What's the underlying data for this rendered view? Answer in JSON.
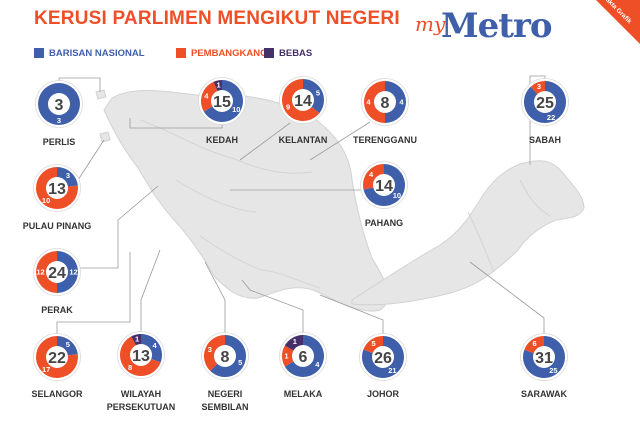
{
  "title": "KERUSI PARLIMEN MENGIKUT NEGERI",
  "logo": {
    "prefix": "my",
    "name": "Metro"
  },
  "corner_badge": "Fakta Grafik",
  "colors": {
    "bn": "#3f5fab",
    "opp": "#ee4f27",
    "bebas": "#45306a",
    "map": "#e5e5e5",
    "title": "#ee4f27"
  },
  "chart_data": {
    "type": "pie",
    "legend": [
      {
        "name": "BARISAN NASIONAL",
        "key": "bn"
      },
      {
        "name": "PEMBANGKANG",
        "key": "opp"
      },
      {
        "name": "BEBAS",
        "key": "bebas"
      }
    ],
    "states": [
      {
        "name": "PERLIS",
        "total": 3,
        "bn": 3,
        "opp": 0,
        "bebas": 0
      },
      {
        "name": "KEDAH",
        "total": 15,
        "bn": 10,
        "opp": 4,
        "bebas": 1
      },
      {
        "name": "KELANTAN",
        "total": 14,
        "bn": 5,
        "opp": 9,
        "bebas": 0
      },
      {
        "name": "TERENGGANU",
        "total": 8,
        "bn": 4,
        "opp": 4,
        "bebas": 0
      },
      {
        "name": "SABAH",
        "total": 25,
        "bn": 22,
        "opp": 3,
        "bebas": 0
      },
      {
        "name": "PULAU PINANG",
        "total": 13,
        "bn": 3,
        "opp": 10,
        "bebas": 0
      },
      {
        "name": "PAHANG",
        "total": 14,
        "bn": 10,
        "opp": 4,
        "bebas": 0
      },
      {
        "name": "PERAK",
        "total": 24,
        "bn": 12,
        "opp": 12,
        "bebas": 0
      },
      {
        "name": "SELANGOR",
        "total": 22,
        "bn": 5,
        "opp": 17,
        "bebas": 0
      },
      {
        "name": "WILAYAH PERSEKUTUAN",
        "total": 13,
        "bn": 4,
        "opp": 8,
        "bebas": 1
      },
      {
        "name": "NEGERI SEMBILAN",
        "total": 8,
        "bn": 5,
        "opp": 3,
        "bebas": 0
      },
      {
        "name": "MELAKA",
        "total": 6,
        "bn": 4,
        "opp": 1,
        "bebas": 1
      },
      {
        "name": "JOHOR",
        "total": 26,
        "bn": 21,
        "opp": 5,
        "bebas": 0
      },
      {
        "name": "SARAWAK",
        "total": 31,
        "bn": 25,
        "opp": 6,
        "bebas": 0
      }
    ]
  }
}
